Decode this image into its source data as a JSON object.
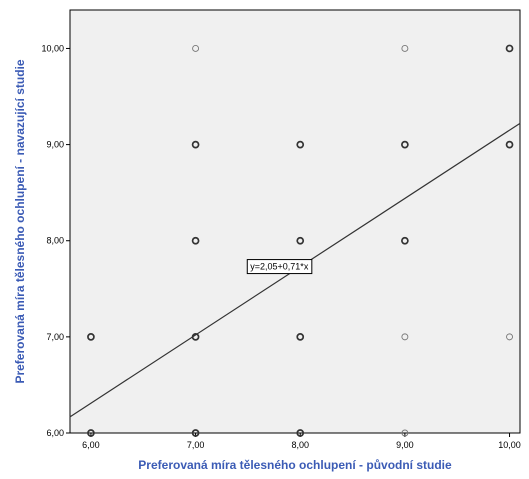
{
  "chart_data": {
    "type": "scatter",
    "title": "",
    "xlabel": "Preferovaná míra tělesného ochlupení - původní studie",
    "ylabel": "Preferovaná míra tělesného ochlupení - navazující studie",
    "xlim": [
      5.8,
      10.1
    ],
    "ylim": [
      6.0,
      10.4
    ],
    "x_ticks": [
      "6,00",
      "7,00",
      "8,00",
      "9,00",
      "10,00"
    ],
    "y_ticks": [
      "6,00",
      "7,00",
      "8,00",
      "9,00",
      "10,00"
    ],
    "grid": false,
    "colors": {
      "plot_background": "#f0f0f0",
      "axis_title": "#3b5bb5",
      "point": "#333333",
      "fit_line": "#333333"
    },
    "fit_line": {
      "intercept": 2.05,
      "slope": 0.71,
      "label": "y=2,05+0,71*x",
      "label_at": [
        7.8,
        7.7
      ]
    },
    "points": [
      {
        "x": 6,
        "y": 6,
        "emphasis": "bold"
      },
      {
        "x": 6,
        "y": 7,
        "emphasis": "bold"
      },
      {
        "x": 7,
        "y": 6,
        "emphasis": "bold"
      },
      {
        "x": 7,
        "y": 7,
        "emphasis": "bold"
      },
      {
        "x": 7,
        "y": 8,
        "emphasis": "bold"
      },
      {
        "x": 7,
        "y": 9,
        "emphasis": "bold"
      },
      {
        "x": 7,
        "y": 10,
        "emphasis": "light"
      },
      {
        "x": 8,
        "y": 6,
        "emphasis": "bold"
      },
      {
        "x": 8,
        "y": 7,
        "emphasis": "bold"
      },
      {
        "x": 8,
        "y": 8,
        "emphasis": "bold"
      },
      {
        "x": 8,
        "y": 9,
        "emphasis": "bold"
      },
      {
        "x": 9,
        "y": 6,
        "emphasis": "light"
      },
      {
        "x": 9,
        "y": 7,
        "emphasis": "light"
      },
      {
        "x": 9,
        "y": 8,
        "emphasis": "bold"
      },
      {
        "x": 9,
        "y": 9,
        "emphasis": "bold"
      },
      {
        "x": 9,
        "y": 10,
        "emphasis": "light"
      },
      {
        "x": 10,
        "y": 7,
        "emphasis": "light"
      },
      {
        "x": 10,
        "y": 9,
        "emphasis": "bold"
      },
      {
        "x": 10,
        "y": 10,
        "emphasis": "bold"
      }
    ]
  }
}
